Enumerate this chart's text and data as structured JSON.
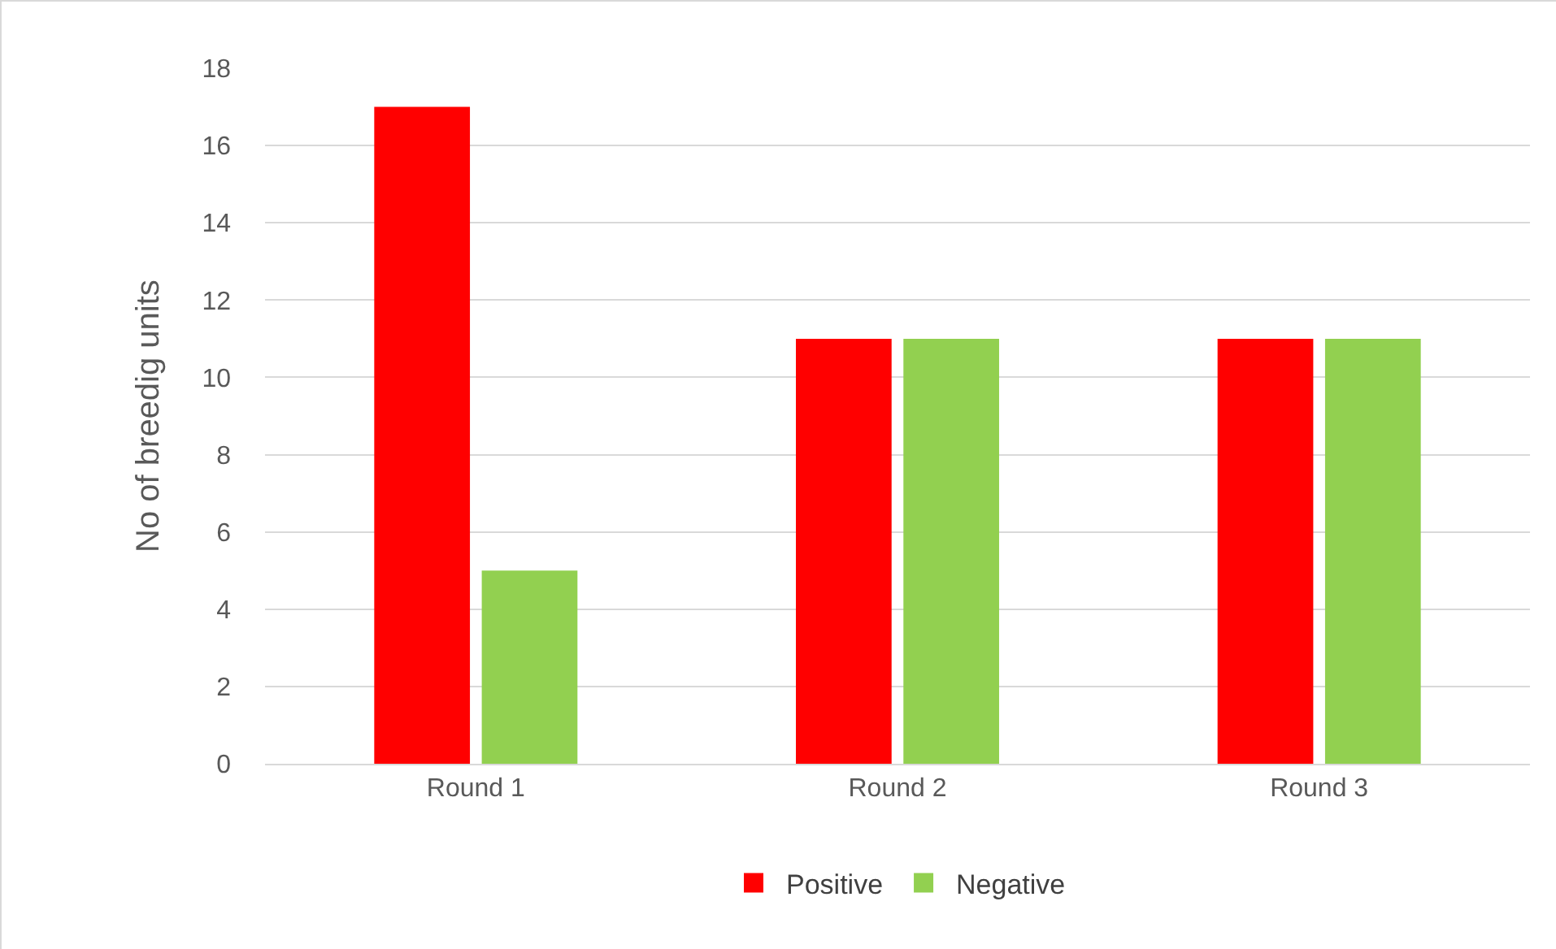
{
  "chart_data": {
    "type": "bar",
    "ylabel": "No of breedig units",
    "categories": [
      "Round 1",
      "Round 2",
      "Round 3"
    ],
    "series": [
      {
        "name": "Positive",
        "color": "#ff0000",
        "values": [
          17,
          11,
          11
        ]
      },
      {
        "name": "Negative",
        "color": "#92d050",
        "values": [
          5,
          11,
          11
        ]
      }
    ],
    "ylim": [
      0,
      18
    ],
    "yticks": [
      0,
      2,
      4,
      6,
      8,
      10,
      12,
      14,
      16,
      18
    ],
    "grid": "y",
    "legend": "bottom"
  }
}
